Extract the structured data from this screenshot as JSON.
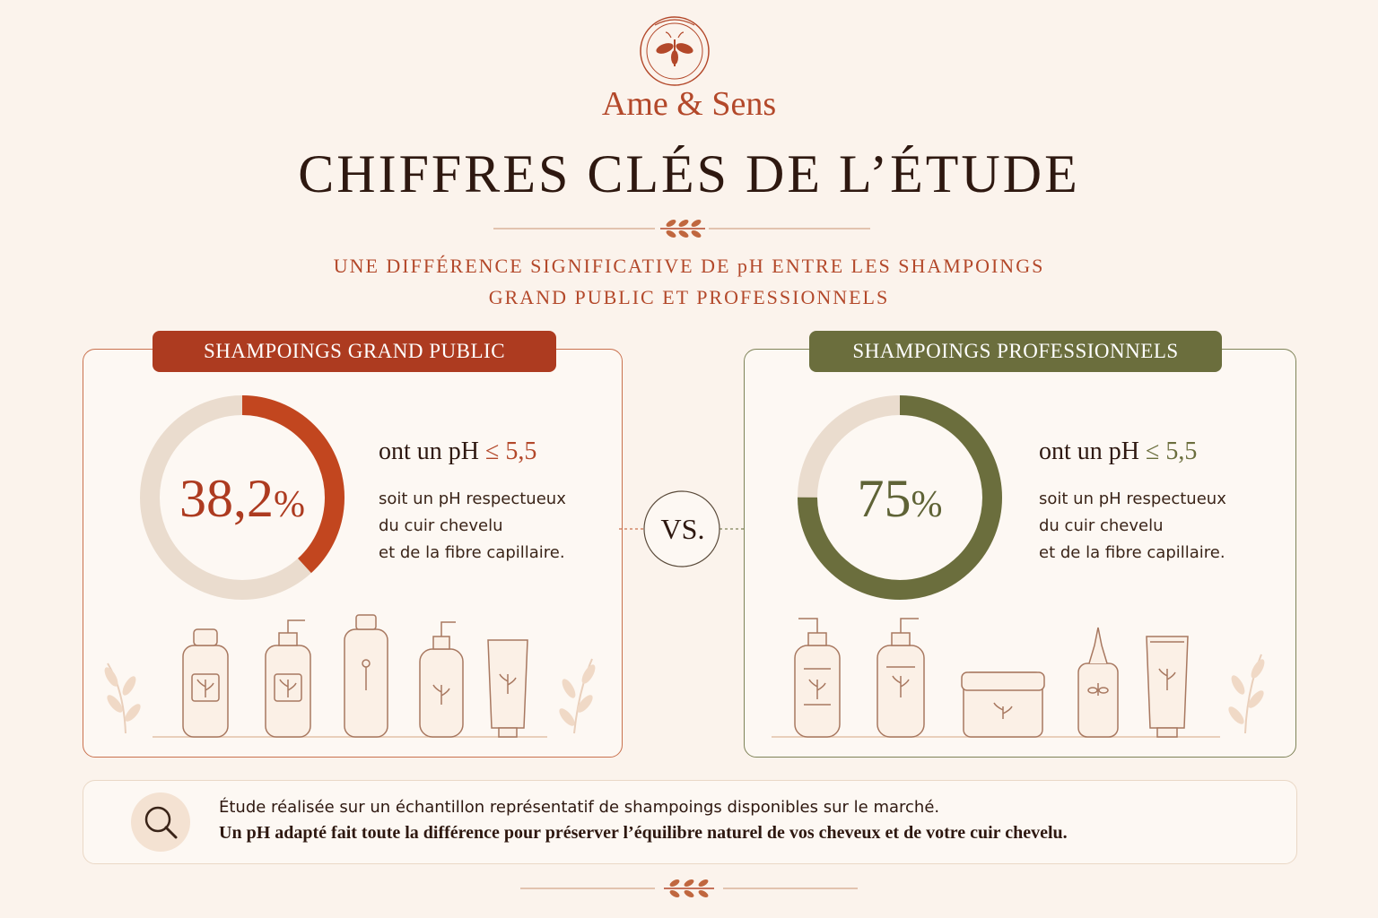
{
  "header": {
    "brand": "Ame & Sens",
    "title": "CHIFFRES CLÉS DE L’ÉTUDE",
    "subtitle_line1": "UNE DIFFÉRENCE SIGNIFICATIVE DE pH ENTRE LES SHAMPOINGS",
    "subtitle_line2": "GRAND PUBLIC ET PROFESSIONNELS"
  },
  "panels": {
    "left": {
      "label": "SHAMPOINGS GRAND PUBLIC",
      "percent_number": "38,2",
      "percent_sign": "%",
      "ph_prefix": "ont un pH ",
      "ph_value": "≤ 5,5",
      "desc_line1": "soit un pH respectueux",
      "desc_line2": "du cuir chevelu",
      "desc_line3": "et de la fibre capillaire.",
      "color": "#ad3b20"
    },
    "right": {
      "label": "SHAMPOINGS PROFESSIONNELS",
      "percent_number": "75",
      "percent_sign": "%",
      "ph_prefix": "ont un pH ",
      "ph_value": "≤ 5,5",
      "desc_line1": "soit un pH respectueux",
      "desc_line2": "du cuir chevelu",
      "desc_line3": "et de la fibre capillaire.",
      "color": "#6b6e3d"
    }
  },
  "vs_label": "VS.",
  "note": {
    "line1": "Étude réalisée sur un échantillon représentatif de shampoings disponibles sur le marché.",
    "line2": "Un pH adapté fait toute la différence pour préserver l’équilibre naturel de vos cheveux et de votre cuir chevelu.",
    "icon": "search-icon"
  },
  "chart_data": [
    {
      "type": "pie",
      "categories": [
        "ont un pH ≤ 5,5",
        ""
      ],
      "values": [
        38.2,
        61.8
      ],
      "colors": [
        "#c2461f",
        "#eadcce"
      ],
      "title": "SHAMPOINGS GRAND PUBLIC"
    },
    {
      "type": "pie",
      "categories": [
        "ont un pH ≤ 5,5",
        ""
      ],
      "values": [
        75,
        25
      ],
      "colors": [
        "#6b6e3d",
        "#eadcce"
      ],
      "title": "SHAMPOINGS PROFESSIONNELS"
    }
  ]
}
